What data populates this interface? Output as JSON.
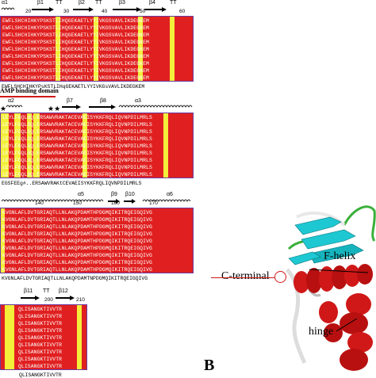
{
  "panel_labels": {
    "b": "B"
  },
  "block1": {
    "labels": [
      "α1",
      "β1",
      "TT",
      "β2",
      "TT",
      "β3",
      "β4",
      "TT"
    ],
    "numbers": [
      "20",
      "30",
      "40",
      "50",
      "60"
    ],
    "rows": [
      "EWFLSHCHIHKYPSKSTLIHQGEKAETLYYIVKGSVAVLIKDEGKEM",
      "EWFLSHCHIHKYPSKSTLIHQGEKAETLYYIVKGSVAVLIKDEGKEM",
      "EWFLSHCHIHKYPSKSTLIHQGEKAETLYYIVKGSVAVLIKDEGKEM",
      "EWFLSHCHIHKYPSKSTLIHQGEKAETLYYIVKGSVAVLIKDEGKEM",
      "EWFLSHCHIHKYPSKSTLIHQGEKAETLYYIVKGSVAVLIKDEGKEM",
      "EWFLSHCHIHKYPSKSTLIHQGEKAETLYYIVKGSVAVLIKDEGKEM",
      "EWFLSHCHIHKYPSKSTLIHQGEKAETLYYIVKGSVAVLIKDEGKEM",
      "EWFLSHCHIHKYPSKSTLIHQGEKAETLYYIVKGSVAVLIKDEGKEM",
      "EWFLSHCHIHKYPSKSTLIHQGEKAETLYYIVKGSVAVLIKDEGKEM"
    ],
    "consensus": "EWFLSHCHIHKYPsKSTLIHqGEKAETLYYIVKGsVAVLIKDEGKEM"
  },
  "camp_label": "AMP binding domain",
  "block2": {
    "labels": [
      "α2",
      "β7",
      "β8",
      "α3"
    ],
    "stars": [
      "★",
      "★★"
    ],
    "rows": [
      "LEYLFGQLGQ.ERSAWVRAKTACEVAEISYKKFRQLIQVNPDILMRLS",
      "LEYLFGQLGQ.ERSAWVRAKTACEVAEISYKKFRQLIQVNPDILMRLS",
      "LEYLFGQLGQ.ERSAWVRAKTACEVAEISYKKFRQLIQVNPDILMRLS",
      "LEYLFGQLGQ.ERSAWVRAKTACEVAEISYKKFRQLIQVNPDILMRLS",
      "LEYLFGQLGQ.ERSAWVRAKTACEVAEISYKKFRQLIQVNPDILMRLS",
      "LEYLFGQLGQ.ERSAWVRAKTACEVAEISYKKFRQLIQVNPDILMRLS",
      "LEYLFGQLGQ.ERSAWVRAKTACEVAEISYKKFRQLIQVNPDILMRLS",
      "LEYLFGQLGQ.ERSAWVRAKTACEVAEISYKKFRQLIQVNPDILMRLS",
      "LEYLFGQLGQ.ERSAWVRAKTACEVAEISYKKFRQLIQVNPDILMRLS"
    ],
    "consensus": "EGSFEEg#..ERSAWVRAKtCEVAEISYKKFRQLIQVNPDILMRLS"
  },
  "block3": {
    "labels": [
      "α5",
      "β9",
      "β10",
      "α6"
    ],
    "numbers": [
      "140",
      "150",
      "160",
      "170"
    ],
    "rows": [
      "KVGNLAFLDVTGRIAQTLLNLAKQPDAMTHPDGMQIKITRQEIGQIVG",
      "KVGNLAFLDVTGRIAQTLLNLAKQPDAMTHPDGMQIKITRQEIGQIVG",
      "KVGNLAFLDVTGRIAQTLLNLAKQPDAMTHPDGMQIKITRQEIGQIVG",
      "KVGNLAFLDVTGRIAQTLLNLAKQPDAMTHPDGMQIKITRQEIGQIVG",
      "KVGNLAFLDVTGRIAQTLLNLAKQPDAMTHPDGMQIKITRQEIGQIVG",
      "KVGNLAFLDVTGRIAQTLLNLAKQPDAMTHPDGMQIKITRQEIGQIVG",
      "KVGNLAFLDVTGRIAQTLLNLAKQPDAMTHPDGMQIKITRQEIGQIVG",
      "KVGNLAFLDVTGRIAQTLLNLAKQPDAMTHPDGMQIKITRQEIGQIVG",
      "KVGNLAFLDVTGRIAQTLLNLAKQPDAMTHPDGMQIKITRQEIGQIVG"
    ],
    "consensus": "KVGNLAFLDVTGRIAQTLLNLAKQPDAMTNPDGMQIKITRQEIGQIVG"
  },
  "block4": {
    "labels": [
      "β11",
      "TT",
      "β12"
    ],
    "numbers": [
      "200",
      "210"
    ],
    "rows": [
      "QLISANGKTIVVTR",
      "QLISANGKTIVVTR",
      "QLISANGKTIVVTR",
      "QLISANGKTIVVTR",
      "QLISANGKTIVVTR",
      "QLISANGKTIVVTR",
      "QLISANGKTIVVTR",
      "QLISANGKTIVVTR",
      "QLISANGKTIVVTR"
    ],
    "consensus": "QLISANGKTIVVTR"
  },
  "structure": {
    "labels": {
      "c_terminal": "C-terminal",
      "f_helix": "F-helix",
      "hinge": "hinge"
    }
  },
  "colors": {
    "identical": "#e02020",
    "similar": "#f3ef3a",
    "frame": "#6a3aa0",
    "helix": "#d01818",
    "strand": "#1ec8d2",
    "loop": "#e8e8e8",
    "coil_green": "#3ab03a"
  }
}
